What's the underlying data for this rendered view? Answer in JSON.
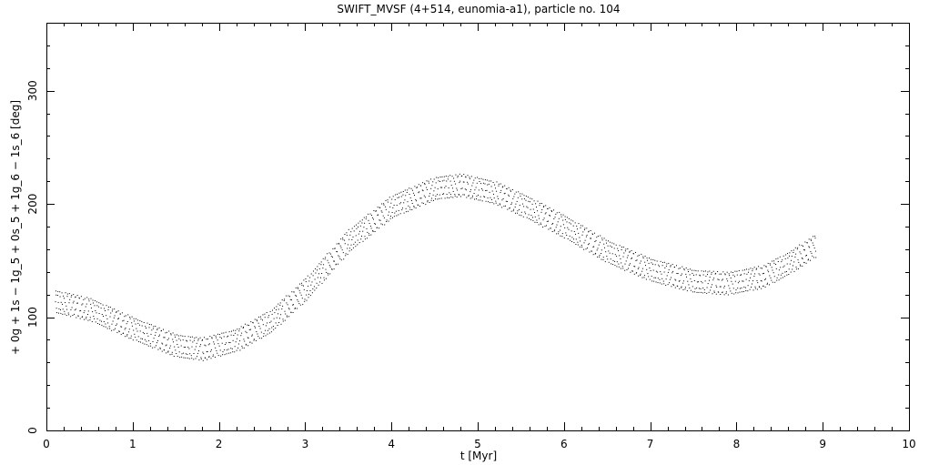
{
  "chart_data": {
    "type": "scatter",
    "title": "SWIFT_MVSF (4+514, eunomia-a1), particle no. 104",
    "xlabel": "t [Myr]",
    "ylabel": "+ 0g + 1s − 1g_5 + 0s_5 + 1g_6 − 1s_6 [deg]",
    "xlim": [
      0,
      10
    ],
    "ylim": [
      0,
      360
    ],
    "x_ticks": [
      0,
      1,
      2,
      3,
      4,
      5,
      6,
      7,
      8,
      9,
      10
    ],
    "y_ticks": [
      0,
      100,
      200,
      300
    ],
    "grid": false,
    "series": [
      {
        "marker_color": "#000000",
        "x_range": [
          0.1,
          8.9
        ],
        "points_per_myr": 40,
        "oscillation_amplitude_deg": 10,
        "trend": {
          "x": [
            0.1,
            0.5,
            1.0,
            1.5,
            1.8,
            2.2,
            2.6,
            3.0,
            3.5,
            4.0,
            4.5,
            4.8,
            5.2,
            5.6,
            6.0,
            6.5,
            7.0,
            7.5,
            7.9,
            8.3,
            8.6,
            8.9
          ],
          "y": [
            114,
            107,
            90,
            75,
            72,
            80,
            97,
            125,
            168,
            198,
            214,
            217,
            210,
            196,
            180,
            158,
            142,
            132,
            130,
            136,
            148,
            163
          ]
        }
      }
    ]
  }
}
